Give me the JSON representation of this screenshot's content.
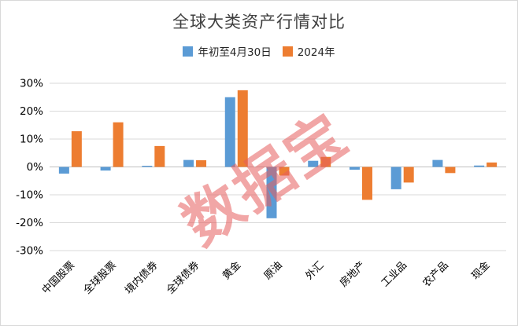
{
  "chart_data": {
    "type": "bar",
    "title": "全球大类资产行情对比",
    "categories": [
      "中国股票",
      "全球股票",
      "境内债券",
      "全球债券",
      "黄金",
      "原油",
      "外汇",
      "房地产",
      "工业品",
      "农产品",
      "现金"
    ],
    "series": [
      {
        "name": "年初至4月30日",
        "color": "#5B9BD5",
        "values": [
          -2.4,
          -1.3,
          0.4,
          2.5,
          25.0,
          -18.4,
          2.2,
          -1.0,
          -8.0,
          2.5,
          0.5
        ]
      },
      {
        "name": "2024年",
        "color": "#ED7D31",
        "values": [
          12.8,
          16.0,
          7.5,
          2.4,
          27.5,
          -3.1,
          3.6,
          -11.8,
          -5.6,
          -2.2,
          1.6
        ]
      }
    ],
    "ylabel": "",
    "xlabel": "",
    "ylim": [
      -30,
      30
    ],
    "ytick_step": 10,
    "ytick_suffix": "%",
    "grid": true,
    "legend_position": "top"
  },
  "watermark": {
    "text": "数据宝",
    "color": "rgba(229,92,92,0.55)"
  },
  "colors": {
    "background": "#FFFFFF",
    "border": "#D9D9D9",
    "gridline": "#D9D9D9",
    "zero_line": "#BFBFBF",
    "title_text": "#404040",
    "axis_text": "#000000"
  }
}
